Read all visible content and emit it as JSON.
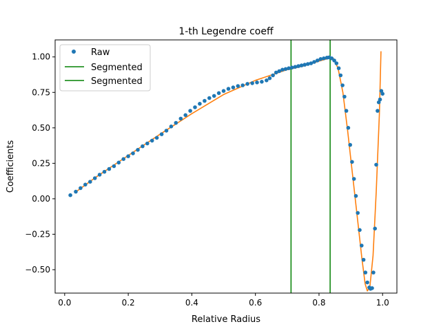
{
  "chart_data": {
    "type": "line",
    "title": "1-th Legendre coeff",
    "xlabel": "Relative Radius",
    "ylabel": "Coefficients",
    "xlim": [
      -0.03,
      1.045
    ],
    "ylim": [
      -0.665,
      1.12
    ],
    "xticks": [
      0.0,
      0.2,
      0.4,
      0.6,
      0.8,
      1.0
    ],
    "xtick_labels": [
      "0.0",
      "0.2",
      "0.4",
      "0.6",
      "0.8",
      "1.0"
    ],
    "yticks": [
      -0.5,
      -0.25,
      0.0,
      0.25,
      0.5,
      0.75,
      1.0
    ],
    "ytick_labels": [
      "−0.50",
      "−0.25",
      "0.00",
      "0.25",
      "0.50",
      "0.75",
      "1.00"
    ],
    "grid": false,
    "legend": {
      "position": "top-left",
      "entries": [
        {
          "label": "Raw",
          "style": "marker",
          "color": "#1f77b4"
        },
        {
          "label": "Segmented",
          "style": "line",
          "color": "#008000"
        },
        {
          "label": "Segmented",
          "style": "line",
          "color": "#008000"
        }
      ]
    },
    "series": [
      {
        "name": "Raw",
        "kind": "scatter",
        "color": "#1f77b4",
        "points": [
          [
            0.018,
            0.025
          ],
          [
            0.035,
            0.05
          ],
          [
            0.05,
            0.075
          ],
          [
            0.065,
            0.1
          ],
          [
            0.08,
            0.12
          ],
          [
            0.095,
            0.145
          ],
          [
            0.11,
            0.17
          ],
          [
            0.125,
            0.19
          ],
          [
            0.14,
            0.21
          ],
          [
            0.155,
            0.23
          ],
          [
            0.17,
            0.255
          ],
          [
            0.185,
            0.28
          ],
          [
            0.2,
            0.3
          ],
          [
            0.215,
            0.32
          ],
          [
            0.23,
            0.345
          ],
          [
            0.245,
            0.37
          ],
          [
            0.26,
            0.39
          ],
          [
            0.275,
            0.41
          ],
          [
            0.29,
            0.43
          ],
          [
            0.305,
            0.455
          ],
          [
            0.32,
            0.48
          ],
          [
            0.335,
            0.51
          ],
          [
            0.35,
            0.535
          ],
          [
            0.365,
            0.565
          ],
          [
            0.38,
            0.59
          ],
          [
            0.395,
            0.62
          ],
          [
            0.41,
            0.645
          ],
          [
            0.425,
            0.67
          ],
          [
            0.44,
            0.69
          ],
          [
            0.455,
            0.71
          ],
          [
            0.47,
            0.725
          ],
          [
            0.485,
            0.745
          ],
          [
            0.5,
            0.76
          ],
          [
            0.515,
            0.775
          ],
          [
            0.53,
            0.785
          ],
          [
            0.545,
            0.795
          ],
          [
            0.56,
            0.8
          ],
          [
            0.575,
            0.81
          ],
          [
            0.59,
            0.815
          ],
          [
            0.605,
            0.82
          ],
          [
            0.62,
            0.825
          ],
          [
            0.635,
            0.835
          ],
          [
            0.645,
            0.85
          ],
          [
            0.655,
            0.87
          ],
          [
            0.665,
            0.89
          ],
          [
            0.675,
            0.9
          ],
          [
            0.685,
            0.91
          ],
          [
            0.695,
            0.915
          ],
          [
            0.705,
            0.92
          ],
          [
            0.715,
            0.925
          ],
          [
            0.725,
            0.93
          ],
          [
            0.735,
            0.935
          ],
          [
            0.745,
            0.94
          ],
          [
            0.755,
            0.945
          ],
          [
            0.765,
            0.95
          ],
          [
            0.775,
            0.955
          ],
          [
            0.785,
            0.965
          ],
          [
            0.795,
            0.975
          ],
          [
            0.805,
            0.985
          ],
          [
            0.815,
            0.99
          ],
          [
            0.825,
            0.995
          ],
          [
            0.832,
            0.997
          ],
          [
            0.84,
            0.99
          ],
          [
            0.848,
            0.975
          ],
          [
            0.855,
            0.955
          ],
          [
            0.862,
            0.92
          ],
          [
            0.868,
            0.87
          ],
          [
            0.874,
            0.8
          ],
          [
            0.88,
            0.72
          ],
          [
            0.886,
            0.62
          ],
          [
            0.892,
            0.5
          ],
          [
            0.898,
            0.38
          ],
          [
            0.904,
            0.26
          ],
          [
            0.91,
            0.14
          ],
          [
            0.916,
            0.02
          ],
          [
            0.922,
            -0.1
          ],
          [
            0.928,
            -0.22
          ],
          [
            0.934,
            -0.33
          ],
          [
            0.94,
            -0.43
          ],
          [
            0.946,
            -0.52
          ],
          [
            0.952,
            -0.59
          ],
          [
            0.958,
            -0.625
          ],
          [
            0.962,
            -0.635
          ],
          [
            0.967,
            -0.63
          ],
          [
            0.971,
            -0.52
          ],
          [
            0.976,
            -0.21
          ],
          [
            0.98,
            0.24
          ],
          [
            0.984,
            0.62
          ],
          [
            0.988,
            0.68
          ],
          [
            0.992,
            0.7
          ],
          [
            0.996,
            0.76
          ],
          [
            1.0,
            0.74
          ]
        ]
      },
      {
        "name": "",
        "kind": "line",
        "color": "#ff7f0e",
        "points": [
          [
            0.033,
            0.045
          ],
          [
            0.1,
            0.155
          ],
          [
            0.2,
            0.305
          ],
          [
            0.3,
            0.455
          ],
          [
            0.4,
            0.6
          ],
          [
            0.5,
            0.735
          ],
          [
            0.6,
            0.835
          ],
          [
            0.7,
            0.91
          ],
          [
            0.75,
            0.935
          ],
          [
            0.8,
            0.97
          ],
          [
            0.83,
            0.99
          ],
          [
            0.845,
            0.99
          ],
          [
            0.86,
            0.92
          ],
          [
            0.875,
            0.75
          ],
          [
            0.89,
            0.48
          ],
          [
            0.905,
            0.18
          ],
          [
            0.92,
            -0.12
          ],
          [
            0.935,
            -0.42
          ],
          [
            0.945,
            -0.6
          ],
          [
            0.952,
            -0.65
          ],
          [
            0.96,
            -0.62
          ],
          [
            0.97,
            -0.4
          ],
          [
            0.98,
            0.05
          ],
          [
            0.99,
            0.6
          ],
          [
            0.995,
            1.04
          ]
        ]
      },
      {
        "name": "Segmented",
        "kind": "vline",
        "color": "#008000",
        "x": 0.712
      },
      {
        "name": "Segmented",
        "kind": "vline",
        "color": "#008000",
        "x": 0.835
      }
    ]
  }
}
